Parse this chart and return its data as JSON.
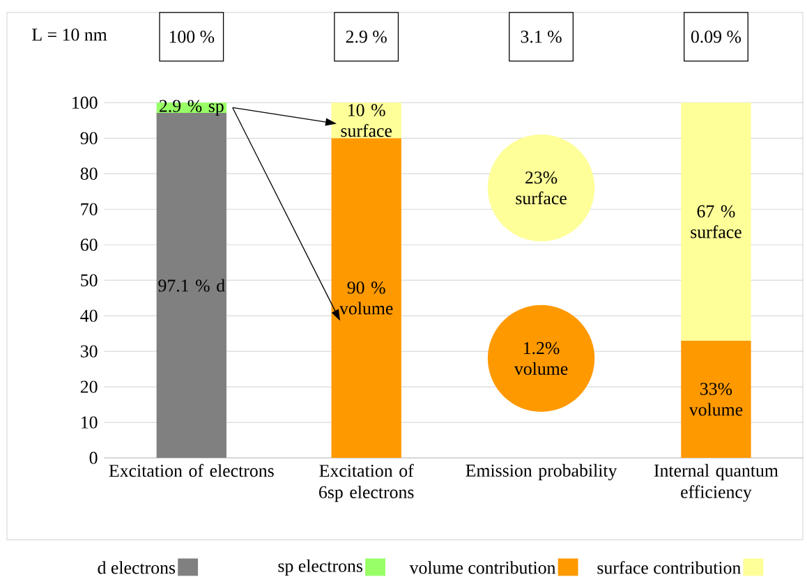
{
  "chart_data": {
    "type": "bar",
    "stacked": true,
    "categories": [
      "Excitation of electrons",
      "Excitation of 6sp electrons",
      "Emission probability",
      "Internal quantum efficiency"
    ],
    "series": [
      {
        "name": "d electrons",
        "color": "#808080",
        "values": [
          97.1,
          null,
          null,
          null
        ],
        "value_labels": [
          "97.1 % d",
          null,
          null,
          null
        ]
      },
      {
        "name": "sp electrons",
        "color": "#99ff66",
        "values": [
          2.9,
          null,
          null,
          null
        ],
        "value_labels": [
          "2.9 % sp",
          null,
          null,
          null
        ]
      },
      {
        "name": "volume contribution",
        "color": "#ff9900",
        "values": [
          null,
          90,
          null,
          33
        ],
        "value_labels": [
          null,
          "90 % volume",
          null,
          "33% volume"
        ]
      },
      {
        "name": "surface contribution",
        "color": "#ffff99",
        "values": [
          null,
          10,
          null,
          67
        ],
        "value_labels": [
          null,
          "10 % surface",
          null,
          "67 % surface"
        ]
      }
    ],
    "annotations": [
      "L = 10 nm",
      "100 %",
      "2.9 %",
      "3.1 %",
      "0.09 %",
      "23% surface",
      "1.2% volume"
    ],
    "ylim": [
      0,
      100
    ],
    "yticks": [
      0,
      10,
      20,
      30,
      40,
      50,
      60,
      70,
      80,
      90,
      100
    ],
    "grid": "y",
    "legend": "bottom"
  }
}
